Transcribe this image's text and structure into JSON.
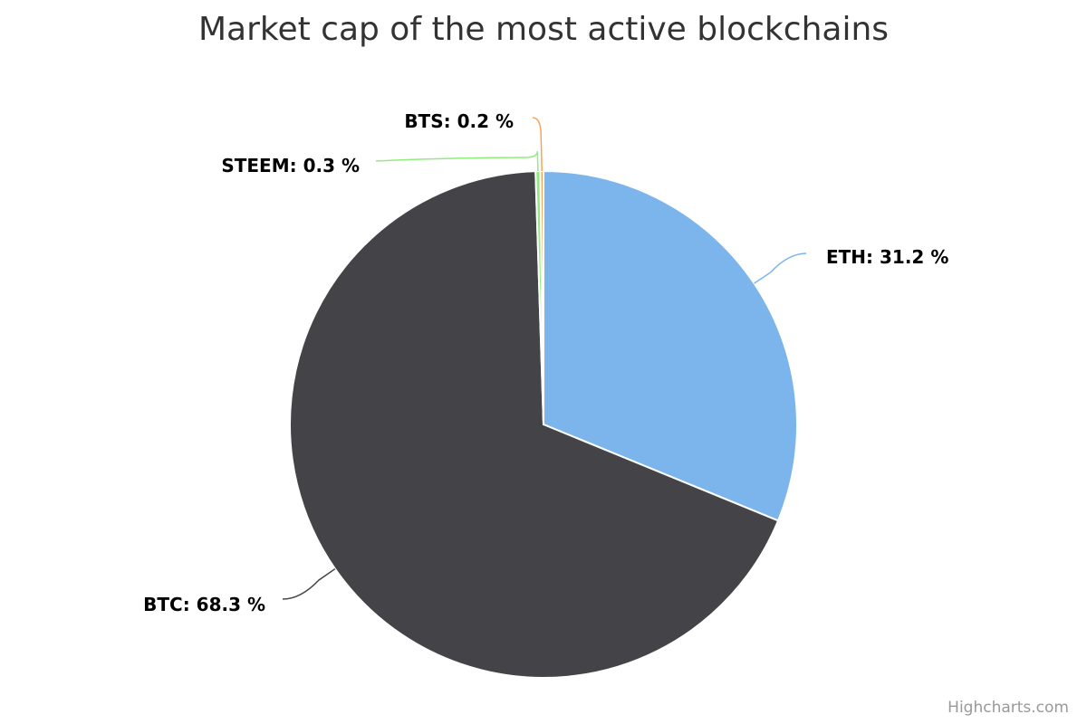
{
  "chart_data": {
    "type": "pie",
    "title": "Market cap of the most active blockchains",
    "slices": [
      {
        "name": "ETH",
        "value": 31.2,
        "label": "ETH: 31.2 %",
        "color": "#7cb5ec"
      },
      {
        "name": "BTC",
        "value": 68.3,
        "label": "BTC: 68.3 %",
        "color": "#434348"
      },
      {
        "name": "STEEM",
        "value": 0.3,
        "label": "STEEM: 0.3 %",
        "color": "#90ed7d"
      },
      {
        "name": "BTS",
        "value": 0.2,
        "label": "BTS: 0.2 %",
        "color": "#f7a35c"
      }
    ]
  },
  "credits": "Highcharts.com"
}
